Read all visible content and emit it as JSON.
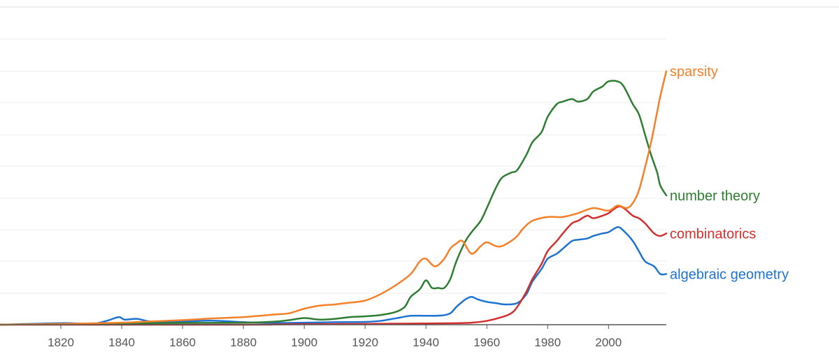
{
  "chart_data": {
    "type": "line",
    "title": "",
    "xlabel": "",
    "ylabel": "",
    "xlim": [
      1800,
      2019
    ],
    "ylim": [
      0,
      100
    ],
    "grid": true,
    "legend": "inline-right",
    "x_ticks": [
      1820,
      1840,
      1860,
      1880,
      1900,
      1920,
      1940,
      1960,
      1980,
      2000
    ],
    "series": [
      {
        "name": "sparsity",
        "color": "#f4802a",
        "points": [
          [
            1800,
            0
          ],
          [
            1820,
            0.3
          ],
          [
            1840,
            0.8
          ],
          [
            1850,
            1.3
          ],
          [
            1860,
            1.8
          ],
          [
            1870,
            2.5
          ],
          [
            1880,
            3
          ],
          [
            1890,
            4
          ],
          [
            1895,
            4.5
          ],
          [
            1900,
            6.3
          ],
          [
            1905,
            7.5
          ],
          [
            1910,
            8
          ],
          [
            1915,
            8.7
          ],
          [
            1920,
            9.5
          ],
          [
            1925,
            12
          ],
          [
            1930,
            15.5
          ],
          [
            1935,
            20
          ],
          [
            1938,
            25
          ],
          [
            1940,
            26
          ],
          [
            1943,
            23
          ],
          [
            1946,
            26
          ],
          [
            1948,
            30
          ],
          [
            1950,
            32
          ],
          [
            1952,
            33
          ],
          [
            1955,
            28
          ],
          [
            1958,
            31
          ],
          [
            1960,
            32.5
          ],
          [
            1963,
            31
          ],
          [
            1965,
            31
          ],
          [
            1968,
            33
          ],
          [
            1970,
            35
          ],
          [
            1972,
            38
          ],
          [
            1975,
            41
          ],
          [
            1980,
            42.5
          ],
          [
            1985,
            42.5
          ],
          [
            1990,
            44
          ],
          [
            1995,
            46
          ],
          [
            2000,
            45
          ],
          [
            2003,
            47
          ],
          [
            2006,
            46
          ],
          [
            2008,
            48
          ],
          [
            2010,
            53
          ],
          [
            2012,
            62
          ],
          [
            2014,
            72
          ],
          [
            2016,
            84
          ],
          [
            2017,
            90
          ],
          [
            2019,
            100
          ]
        ]
      },
      {
        "name": "number theory",
        "color": "#2e7d32",
        "points": [
          [
            1800,
            0
          ],
          [
            1820,
            0.3
          ],
          [
            1840,
            0.5
          ],
          [
            1860,
            0.7
          ],
          [
            1880,
            0.8
          ],
          [
            1890,
            1.2
          ],
          [
            1895,
            1.8
          ],
          [
            1900,
            2.6
          ],
          [
            1905,
            2
          ],
          [
            1910,
            2.3
          ],
          [
            1915,
            3
          ],
          [
            1920,
            3.3
          ],
          [
            1925,
            3.8
          ],
          [
            1930,
            5
          ],
          [
            1933,
            7
          ],
          [
            1935,
            11
          ],
          [
            1938,
            14
          ],
          [
            1940,
            17.5
          ],
          [
            1942,
            14.5
          ],
          [
            1944,
            14.5
          ],
          [
            1946,
            14.5
          ],
          [
            1948,
            18
          ],
          [
            1950,
            25
          ],
          [
            1953,
            33
          ],
          [
            1955,
            36.5
          ],
          [
            1958,
            41
          ],
          [
            1960,
            46
          ],
          [
            1963,
            54
          ],
          [
            1965,
            58
          ],
          [
            1968,
            60
          ],
          [
            1970,
            61
          ],
          [
            1973,
            67
          ],
          [
            1975,
            72
          ],
          [
            1978,
            76
          ],
          [
            1980,
            82
          ],
          [
            1983,
            87
          ],
          [
            1985,
            88
          ],
          [
            1988,
            89
          ],
          [
            1990,
            88
          ],
          [
            1993,
            89
          ],
          [
            1995,
            92
          ],
          [
            1998,
            94
          ],
          [
            2000,
            96
          ],
          [
            2003,
            96
          ],
          [
            2005,
            94
          ],
          [
            2008,
            87
          ],
          [
            2010,
            83
          ],
          [
            2012,
            75
          ],
          [
            2014,
            67
          ],
          [
            2016,
            60
          ],
          [
            2017,
            55
          ],
          [
            2019,
            51
          ]
        ]
      },
      {
        "name": "combinatorics",
        "color": "#d32f2f",
        "points": [
          [
            1800,
            0
          ],
          [
            1880,
            0
          ],
          [
            1890,
            0.1
          ],
          [
            1900,
            0.2
          ],
          [
            1920,
            0.3
          ],
          [
            1940,
            0.5
          ],
          [
            1950,
            0.6
          ],
          [
            1955,
            0.8
          ],
          [
            1960,
            1.5
          ],
          [
            1965,
            3
          ],
          [
            1968,
            4.5
          ],
          [
            1970,
            7
          ],
          [
            1973,
            13
          ],
          [
            1975,
            18
          ],
          [
            1978,
            24
          ],
          [
            1980,
            29
          ],
          [
            1983,
            33
          ],
          [
            1985,
            36
          ],
          [
            1988,
            40
          ],
          [
            1990,
            41
          ],
          [
            1993,
            43
          ],
          [
            1995,
            42
          ],
          [
            1998,
            43
          ],
          [
            2000,
            44
          ],
          [
            2003,
            46.5
          ],
          [
            2005,
            46
          ],
          [
            2008,
            43
          ],
          [
            2010,
            42
          ],
          [
            2012,
            40
          ],
          [
            2015,
            36
          ],
          [
            2017,
            35
          ],
          [
            2019,
            36
          ]
        ]
      },
      {
        "name": "algebraic geometry",
        "color": "#1e73d2",
        "points": [
          [
            1800,
            0
          ],
          [
            1820,
            0.6
          ],
          [
            1830,
            0.3
          ],
          [
            1835,
            1.5
          ],
          [
            1839,
            3
          ],
          [
            1841,
            2
          ],
          [
            1845,
            2.3
          ],
          [
            1850,
            1.2
          ],
          [
            1860,
            1.2
          ],
          [
            1870,
            1.6
          ],
          [
            1880,
            1
          ],
          [
            1890,
            0.7
          ],
          [
            1900,
            0.8
          ],
          [
            1910,
            1
          ],
          [
            1920,
            1.1
          ],
          [
            1925,
            1.5
          ],
          [
            1930,
            2.5
          ],
          [
            1935,
            3.5
          ],
          [
            1940,
            3.5
          ],
          [
            1945,
            3.6
          ],
          [
            1948,
            4.5
          ],
          [
            1950,
            7
          ],
          [
            1953,
            10
          ],
          [
            1955,
            11
          ],
          [
            1957,
            10
          ],
          [
            1960,
            9
          ],
          [
            1963,
            8.5
          ],
          [
            1966,
            8
          ],
          [
            1970,
            8.5
          ],
          [
            1973,
            12
          ],
          [
            1975,
            17
          ],
          [
            1978,
            22
          ],
          [
            1980,
            26
          ],
          [
            1983,
            28
          ],
          [
            1985,
            30
          ],
          [
            1988,
            33
          ],
          [
            1990,
            33.5
          ],
          [
            1993,
            34
          ],
          [
            1995,
            35
          ],
          [
            1998,
            36
          ],
          [
            2000,
            36.5
          ],
          [
            2003,
            38.5
          ],
          [
            2005,
            37
          ],
          [
            2008,
            33
          ],
          [
            2010,
            29
          ],
          [
            2012,
            25
          ],
          [
            2015,
            23
          ],
          [
            2017,
            20
          ],
          [
            2019,
            20
          ]
        ]
      }
    ]
  }
}
